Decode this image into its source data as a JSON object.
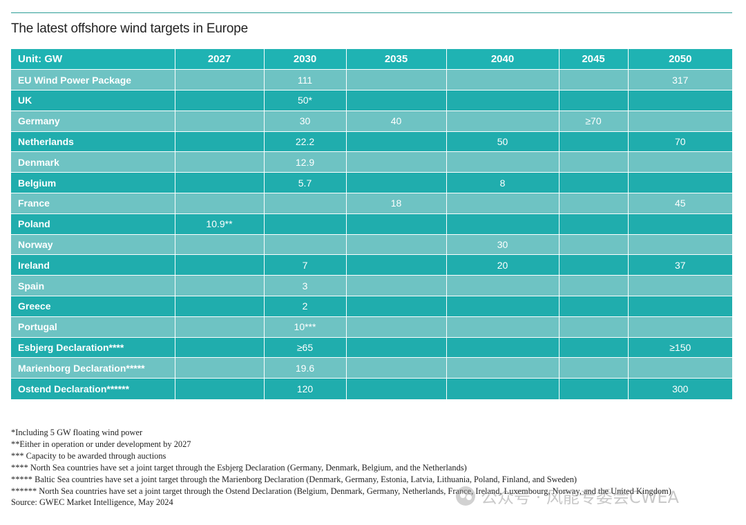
{
  "title": "The latest offshore wind targets in Europe",
  "table": {
    "unit_label": "Unit: GW",
    "years": [
      "2027",
      "2030",
      "2035",
      "2040",
      "2045",
      "2050"
    ],
    "rows": [
      {
        "label": "EU Wind Power Package",
        "values": [
          "",
          "111",
          "",
          "",
          "",
          "317"
        ]
      },
      {
        "label": "UK",
        "values": [
          "",
          "50*",
          "",
          "",
          "",
          ""
        ]
      },
      {
        "label": "Germany",
        "values": [
          "",
          "30",
          "40",
          "",
          "≥70",
          ""
        ]
      },
      {
        "label": "Netherlands",
        "values": [
          "",
          "22.2",
          "",
          "50",
          "",
          "70"
        ]
      },
      {
        "label": "Denmark",
        "values": [
          "",
          "12.9",
          "",
          "",
          "",
          ""
        ]
      },
      {
        "label": "Belgium",
        "values": [
          "",
          "5.7",
          "",
          "8",
          "",
          ""
        ]
      },
      {
        "label": "France",
        "values": [
          "",
          "",
          "18",
          "",
          "",
          "45"
        ]
      },
      {
        "label": "Poland",
        "values": [
          "10.9**",
          "",
          "",
          "",
          "",
          ""
        ]
      },
      {
        "label": "Norway",
        "values": [
          "",
          "",
          "",
          "30",
          "",
          ""
        ]
      },
      {
        "label": "Ireland",
        "values": [
          "",
          "7",
          "",
          "20",
          "",
          "37"
        ]
      },
      {
        "label": "Spain",
        "values": [
          "",
          "3",
          "",
          "",
          "",
          ""
        ]
      },
      {
        "label": "Greece",
        "values": [
          "",
          "2",
          "",
          "",
          "",
          ""
        ]
      },
      {
        "label": "Portugal",
        "values": [
          "",
          "10***",
          "",
          "",
          "",
          ""
        ]
      },
      {
        "label": "Esbjerg Declaration****",
        "values": [
          "",
          "≥65",
          "",
          "",
          "",
          "≥150"
        ]
      },
      {
        "label": "Marienborg Declaration*****",
        "values": [
          "",
          "19.6",
          "",
          "",
          "",
          ""
        ]
      },
      {
        "label": "Ostend Declaration******",
        "values": [
          "",
          "120",
          "",
          "",
          "",
          "300"
        ]
      }
    ]
  },
  "footnotes": [
    "*Including 5 GW floating wind power",
    "**Either in operation or under development by 2027",
    "*** Capacity to be awarded through auctions",
    "**** North Sea countries have set a joint target through the Esbjerg Declaration (Germany, Denmark, Belgium, and the Netherlands)",
    "***** Baltic Sea countries have set a joint target through the Marienborg Declaration (Denmark, Germany, Estonia, Latvia, Lithuania, Poland, Finland, and Sweden)",
    "****** North Sea countries have set a joint target through the Ostend Declaration (Belgium, Denmark, Germany, Netherlands, France, Ireland, Luxembourg, Norway, and the United Kingdom)"
  ],
  "source": "Source: GWEC Market Intelligence, May 2024",
  "watermark": {
    "icon": "wechat-icon",
    "text": "公众号 · 风能专委会CWEA"
  },
  "colors": {
    "header": "#1fb3b3",
    "row_light": "#6ec3c3",
    "row_dark": "#20adad",
    "rule": "#2a9d95"
  }
}
